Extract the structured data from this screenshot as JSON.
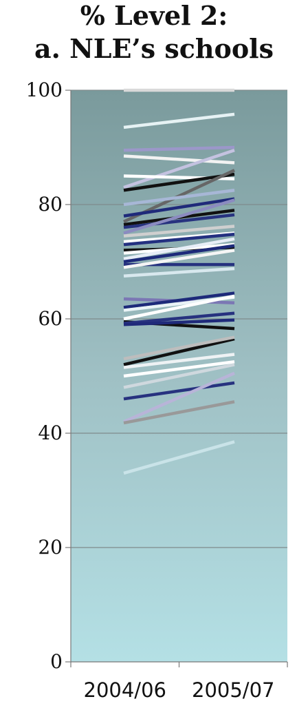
{
  "chart_data": {
    "type": "line",
    "title_lines": [
      "% Level 2:",
      "a. NLE’s schools"
    ],
    "categories": [
      "2004/06",
      "2005/07"
    ],
    "ylim": [
      0,
      100
    ],
    "yticks": [
      "0",
      "20",
      "40",
      "60",
      "80",
      "100"
    ],
    "xlabel": "",
    "ylabel": "",
    "grid": true,
    "series": [
      {
        "values": [
          100,
          100
        ],
        "color": "#d9d9d9"
      },
      {
        "values": [
          93.5,
          95.8
        ],
        "color": "#e6f2f4"
      },
      {
        "values": [
          89.5,
          90.0
        ],
        "color": "#9b97c9"
      },
      {
        "values": [
          88.5,
          87.3
        ],
        "color": "#f2f2f2"
      },
      {
        "values": [
          83.0,
          89.5
        ],
        "color": "#c4c2e0"
      },
      {
        "values": [
          85.0,
          84.5
        ],
        "color": "#ffffff"
      },
      {
        "values": [
          82.5,
          85.3
        ],
        "color": "#111111"
      },
      {
        "values": [
          77.0,
          86.0
        ],
        "color": "#666666"
      },
      {
        "values": [
          80.0,
          82.5
        ],
        "color": "#a7b7d6"
      },
      {
        "values": [
          78.0,
          81.0
        ],
        "color": "#1f2a7a"
      },
      {
        "values": [
          76.5,
          79.0
        ],
        "color": "#111111"
      },
      {
        "values": [
          76.0,
          78.2
        ],
        "color": "#27327f"
      },
      {
        "values": [
          75.0,
          80.8
        ],
        "color": "#8b8bc0"
      },
      {
        "values": [
          74.5,
          76.2
        ],
        "color": "#cfcfcf"
      },
      {
        "values": [
          73.5,
          75.0
        ],
        "color": "#ffffff"
      },
      {
        "values": [
          73.0,
          74.8
        ],
        "color": "#233080"
      },
      {
        "values": [
          72.0,
          72.5
        ],
        "color": "#111111"
      },
      {
        "values": [
          71.5,
          73.0
        ],
        "color": "#ffffff"
      },
      {
        "values": [
          70.5,
          74.0
        ],
        "color": "#e7eef7"
      },
      {
        "values": [
          70.0,
          72.8
        ],
        "color": "#1d2a7a"
      },
      {
        "values": [
          69.5,
          69.5
        ],
        "color": "#26327f"
      },
      {
        "values": [
          69.0,
          72.0
        ],
        "color": "#f5f5f5"
      },
      {
        "values": [
          67.5,
          68.8
        ],
        "color": "#d8e8ee"
      },
      {
        "values": [
          63.5,
          62.8
        ],
        "color": "#7b77b4"
      },
      {
        "values": [
          62.0,
          64.5
        ],
        "color": "#1d2a7a"
      },
      {
        "values": [
          61.5,
          63.8
        ],
        "color": "#e9f3f6"
      },
      {
        "values": [
          60.0,
          64.0
        ],
        "color": "#ffffff"
      },
      {
        "values": [
          59.5,
          58.3
        ],
        "color": "#111111"
      },
      {
        "values": [
          59.2,
          61.0
        ],
        "color": "#27327f"
      },
      {
        "values": [
          59.0,
          59.8
        ],
        "color": "#1f2a7a"
      },
      {
        "values": [
          52.0,
          56.5
        ],
        "color": "#111111"
      },
      {
        "values": [
          53.0,
          56.8
        ],
        "color": "#bdbdbd"
      },
      {
        "values": [
          51.5,
          53.8
        ],
        "color": "#eef2f4"
      },
      {
        "values": [
          50.0,
          52.5
        ],
        "color": "#ffffff"
      },
      {
        "values": [
          48.0,
          52.0
        ],
        "color": "#cfd8de"
      },
      {
        "values": [
          46.0,
          48.8
        ],
        "color": "#27327f"
      },
      {
        "values": [
          42.0,
          50.5
        ],
        "color": "#b8b4d8"
      },
      {
        "values": [
          41.8,
          45.5
        ],
        "color": "#999999"
      },
      {
        "values": [
          33.0,
          38.5
        ],
        "color": "#c9e3e8"
      }
    ]
  }
}
